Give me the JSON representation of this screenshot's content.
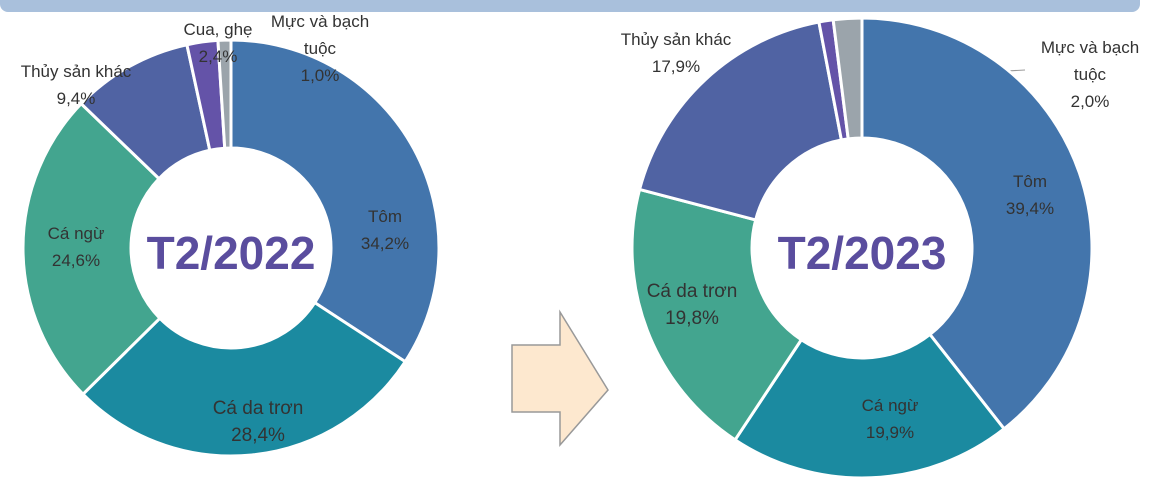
{
  "chart_data": [
    {
      "type": "pie",
      "title": "T2/2022",
      "categories": [
        "Tôm",
        "Cá da trơn",
        "Cá ngừ",
        "Thủy sản khác",
        "Cua, ghẹ",
        "Mực và bạch tuộc"
      ],
      "values": [
        34.2,
        28.4,
        24.6,
        9.4,
        2.4,
        1.0
      ],
      "value_labels": [
        "34,2%",
        "28,4%",
        "24,6%",
        "9,4%",
        "2,4%",
        "1,0%"
      ],
      "colors": [
        "#4375ac",
        "#1b8aa0",
        "#43a58f",
        "#5063a3",
        "#6453a8",
        "#9ba4ab"
      ]
    },
    {
      "type": "pie",
      "title": "T2/2023",
      "categories": [
        "Tôm",
        "Cá ngừ",
        "Cá da trơn",
        "Thủy sản khác",
        null,
        "Mực và bạch tuộc"
      ],
      "values": [
        39.4,
        19.9,
        19.8,
        17.9,
        1.0,
        2.0
      ],
      "value_labels": [
        "39,4%",
        "19,9%",
        "19,8%",
        "17,9%",
        null,
        "2,0%"
      ],
      "colors": [
        "#4375ac",
        "#1b8aa0",
        "#43a58f",
        "#5063a3",
        "#6453a8",
        "#9ba4ab"
      ]
    }
  ]
}
